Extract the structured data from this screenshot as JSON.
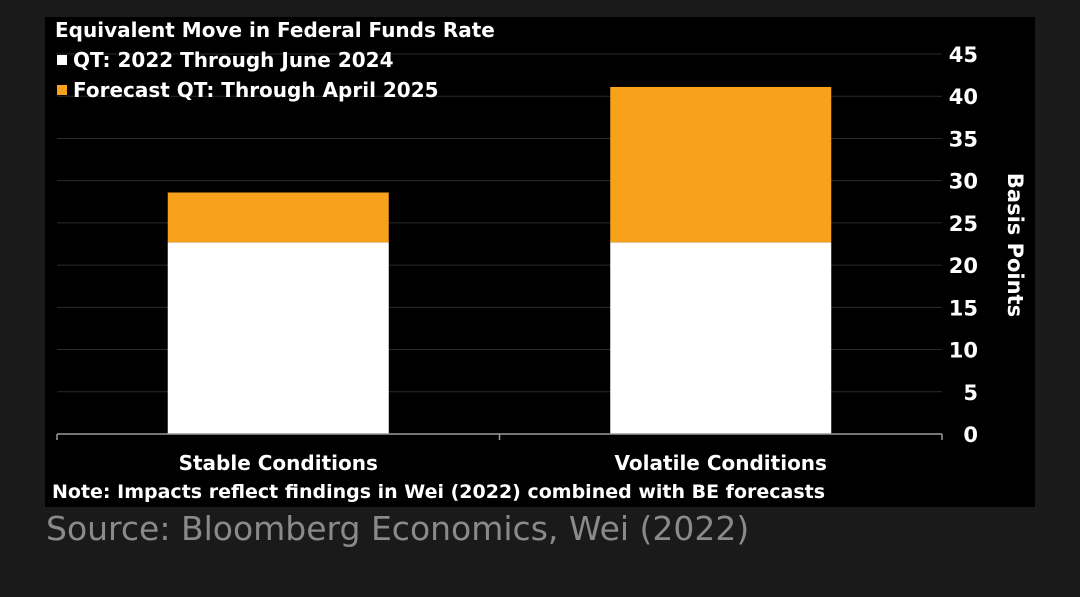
{
  "chart_data": {
    "type": "bar",
    "stacked": true,
    "title": "Equivalent Move in Federal Funds Rate",
    "categories": [
      "Stable Conditions",
      "Volatile Conditions"
    ],
    "series": [
      {
        "name": "QT: 2022 Through June 2024",
        "color": "#ffffff",
        "values": [
          22.7,
          22.7
        ]
      },
      {
        "name": "Forecast QT: Through April 2025",
        "color": "#f8a21c",
        "values": [
          5.9,
          18.4
        ]
      }
    ],
    "ylabel": "Basis Points",
    "xlabel": "",
    "ylim": [
      0,
      45
    ],
    "yticks": [
      0,
      5,
      10,
      15,
      20,
      25,
      30,
      35,
      40,
      45
    ],
    "grid": true,
    "y_axis_side": "right",
    "legend_position": "top-left"
  },
  "note": "Note: Impacts reflect findings in Wei (2022) combined with BE forecasts",
  "source": "Source: Bloomberg Economics, Wei (2022)"
}
